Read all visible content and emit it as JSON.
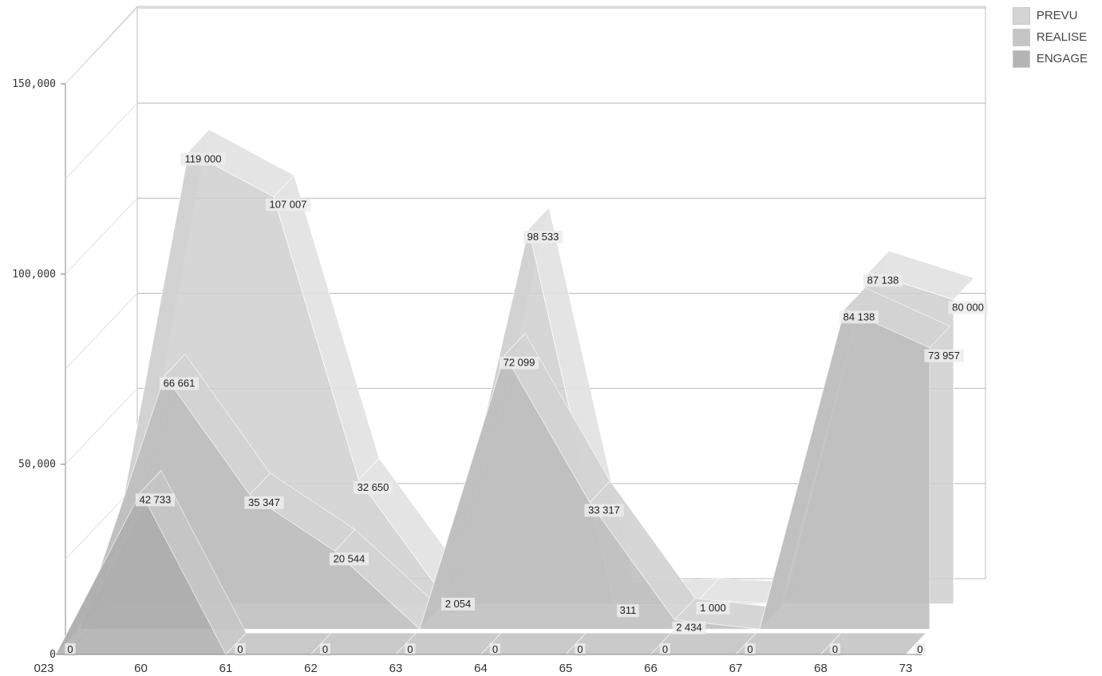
{
  "chart_data": {
    "type": "area",
    "title": "",
    "xlabel": "",
    "ylabel": "",
    "categories": [
      "023",
      "60",
      "61",
      "62",
      "63",
      "64",
      "65",
      "66",
      "67",
      "68",
      "73"
    ],
    "ylim": [
      0,
      150000
    ],
    "yticks": [
      {
        "value": 0,
        "label": "0"
      },
      {
        "value": 50000,
        "label": "50,000"
      },
      {
        "value": 100000,
        "label": "100,000"
      },
      {
        "value": 150000,
        "label": "150,000"
      }
    ],
    "grid": true,
    "legend_position": "top-right",
    "series": [
      {
        "name": "PREVU",
        "color": "#d4d4d4",
        "values": [
          0,
          119000,
          107007,
          32650,
          2054,
          98533,
          311,
          1000,
          0,
          87138,
          80000
        ],
        "labels": [
          "",
          "119 000",
          "107 007",
          "32 650",
          "2 054",
          "98 533",
          "311",
          "1 000",
          "",
          "87 138",
          "80 000"
        ]
      },
      {
        "name": "REALISE",
        "color": "#c5c5c5",
        "values": [
          0,
          66661,
          35347,
          20544,
          0,
          72099,
          33317,
          2434,
          0,
          84138,
          73957
        ],
        "labels": [
          "",
          "66 661",
          "35 347",
          "20 544",
          "",
          "72 099",
          "33 317",
          "2 434",
          "",
          "84 138",
          "73 957"
        ]
      },
      {
        "name": "ENGAGE",
        "color": "#b4b4b4",
        "values": [
          0,
          42733,
          0,
          0,
          0,
          0,
          0,
          0,
          0,
          0,
          0
        ],
        "labels": [
          "0",
          "42 733",
          "0",
          "0",
          "0",
          "0",
          "0",
          "0",
          "0",
          "0",
          "0"
        ]
      }
    ]
  }
}
